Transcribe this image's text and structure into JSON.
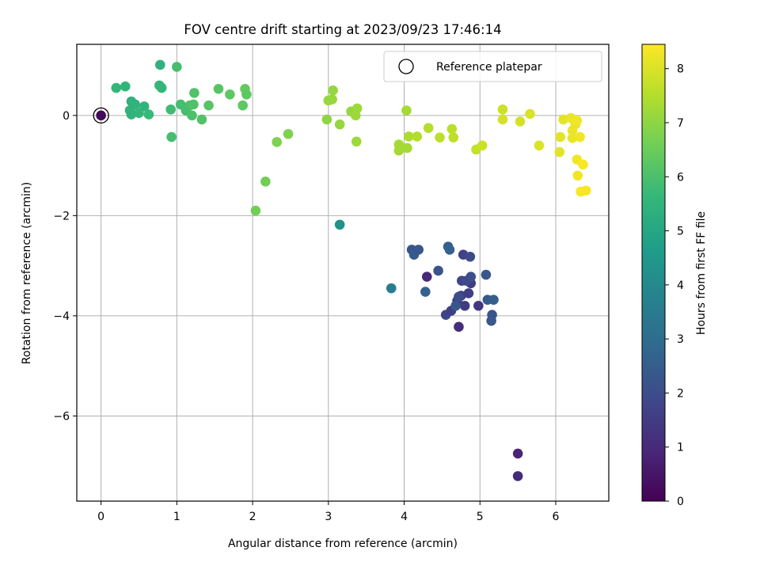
{
  "chart_data": {
    "type": "scatter",
    "title": "FOV centre drift starting at 2023/09/23 17:46:14",
    "xlabel": "Angular distance from reference (arcmin)",
    "ylabel": "Rotation from reference (arcmin)",
    "xlim": [
      -0.32,
      6.7
    ],
    "ylim": [
      -7.7,
      1.42
    ],
    "xticks": [
      0,
      1,
      2,
      3,
      4,
      5,
      6
    ],
    "yticks": [
      -6,
      -4,
      -2,
      0
    ],
    "ytick_labels": [
      "−6",
      "−4",
      "−2",
      "0"
    ],
    "grid": true,
    "legend": {
      "placement": "upper-right",
      "label": "Reference platepar"
    },
    "reference_point": {
      "x": 0,
      "y": 0
    },
    "colorbar": {
      "label": "Hours from first FF file",
      "range": [
        0,
        8.45
      ],
      "ticks": [
        0,
        1,
        2,
        3,
        4,
        5,
        6,
        7,
        8
      ],
      "colormap": "viridis"
    },
    "points": [
      [
        0,
        0,
        0.2
      ],
      [
        5.5,
        -6.75,
        0.9
      ],
      [
        5.5,
        -7.2,
        1.0
      ],
      [
        4.3,
        -3.22,
        1.0
      ],
      [
        4.72,
        -4.22,
        1.1
      ],
      [
        4.98,
        -3.8,
        1.4
      ],
      [
        4.55,
        -3.98,
        1.8
      ],
      [
        4.62,
        -3.9,
        1.6
      ],
      [
        4.7,
        -3.7,
        1.5
      ],
      [
        4.75,
        -3.6,
        1.6
      ],
      [
        4.8,
        -3.8,
        1.5
      ],
      [
        4.85,
        -3.55,
        1.6
      ],
      [
        4.88,
        -3.35,
        1.5
      ],
      [
        4.76,
        -3.3,
        1.8
      ],
      [
        4.82,
        -3.3,
        1.9
      ],
      [
        4.78,
        -2.78,
        1.7
      ],
      [
        4.87,
        -2.82,
        1.9
      ],
      [
        4.88,
        -3.22,
        2.1
      ],
      [
        4.45,
        -3.1,
        2.2
      ],
      [
        4.1,
        -2.68,
        2.2
      ],
      [
        4.13,
        -2.78,
        2.4
      ],
      [
        4.19,
        -2.68,
        2.3
      ],
      [
        4.28,
        -3.52,
        2.6
      ],
      [
        4.58,
        -2.62,
        2.5
      ],
      [
        4.6,
        -2.68,
        2.6
      ],
      [
        4.68,
        -3.8,
        2.3
      ],
      [
        4.72,
        -3.62,
        2.0
      ],
      [
        5.08,
        -3.18,
        2.3
      ],
      [
        5.1,
        -3.68,
        2.4
      ],
      [
        5.18,
        -3.68,
        2.5
      ],
      [
        5.16,
        -3.98,
        2.2
      ],
      [
        5.15,
        -4.1,
        2.3
      ],
      [
        3.83,
        -3.45,
        3.6
      ],
      [
        3.15,
        -2.18,
        4.3
      ],
      [
        0.78,
        1.01,
        5.4
      ],
      [
        0.77,
        0.6,
        5.6
      ],
      [
        0.8,
        0.55,
        5.6
      ],
      [
        0.32,
        0.58,
        5.5
      ],
      [
        0.2,
        0.55,
        5.6
      ],
      [
        0.38,
        0.1,
        5.5
      ],
      [
        0.4,
        0.02,
        5.5
      ],
      [
        0.4,
        0.28,
        5.4
      ],
      [
        0.45,
        0.22,
        5.5
      ],
      [
        0.5,
        0.05,
        5.6
      ],
      [
        0.57,
        0.18,
        5.5
      ],
      [
        0.63,
        0.02,
        5.7
      ],
      [
        0.92,
        0.12,
        5.8
      ],
      [
        0.93,
        -0.43,
        5.9
      ],
      [
        1.0,
        0.97,
        5.9
      ],
      [
        1.05,
        0.22,
        5.9
      ],
      [
        1.12,
        0.1,
        5.9
      ],
      [
        1.17,
        0.2,
        6.0
      ],
      [
        1.2,
        0.0,
        6.0
      ],
      [
        1.22,
        0.22,
        6.1
      ],
      [
        1.23,
        0.45,
        6.1
      ],
      [
        1.33,
        -0.08,
        6.1
      ],
      [
        1.42,
        0.2,
        6.2
      ],
      [
        1.55,
        0.53,
        6.2
      ],
      [
        1.7,
        0.42,
        6.3
      ],
      [
        1.87,
        0.2,
        6.3
      ],
      [
        1.9,
        0.53,
        6.4
      ],
      [
        1.92,
        0.42,
        6.3
      ],
      [
        2.04,
        -1.9,
        6.6
      ],
      [
        2.17,
        -1.32,
        6.6
      ],
      [
        2.32,
        -0.53,
        6.8
      ],
      [
        2.47,
        -0.37,
        6.8
      ],
      [
        2.98,
        -0.08,
        7.0
      ],
      [
        3.0,
        0.3,
        7.1
      ],
      [
        3.05,
        0.32,
        7.1
      ],
      [
        3.06,
        0.5,
        7.1
      ],
      [
        3.15,
        -0.18,
        7.1
      ],
      [
        3.3,
        0.08,
        7.1
      ],
      [
        3.36,
        0.0,
        7.2
      ],
      [
        3.38,
        0.14,
        7.2
      ],
      [
        3.37,
        -0.52,
        7.2
      ],
      [
        3.93,
        -0.58,
        7.3
      ],
      [
        3.93,
        -0.7,
        7.3
      ],
      [
        4.03,
        0.1,
        7.3
      ],
      [
        4.04,
        -0.65,
        7.3
      ],
      [
        4.06,
        -0.42,
        7.4
      ],
      [
        4.17,
        -0.42,
        7.5
      ],
      [
        4.32,
        -0.25,
        7.5
      ],
      [
        4.47,
        -0.44,
        7.6
      ],
      [
        4.63,
        -0.27,
        7.6
      ],
      [
        4.65,
        -0.44,
        7.6
      ],
      [
        4.95,
        -0.68,
        7.7
      ],
      [
        5.03,
        -0.6,
        7.8
      ],
      [
        5.3,
        0.12,
        7.8
      ],
      [
        5.3,
        -0.08,
        7.9
      ],
      [
        5.53,
        -0.12,
        7.9
      ],
      [
        5.66,
        0.03,
        8.0
      ],
      [
        5.78,
        -0.6,
        8.0
      ],
      [
        6.05,
        -0.73,
        8.1
      ],
      [
        6.06,
        -0.43,
        8.1
      ],
      [
        6.1,
        -0.08,
        8.1
      ],
      [
        6.2,
        -0.05,
        8.2
      ],
      [
        6.22,
        -0.3,
        8.2
      ],
      [
        6.22,
        -0.45,
        8.2
      ],
      [
        6.26,
        -0.18,
        8.2
      ],
      [
        6.28,
        -0.1,
        8.3
      ],
      [
        6.28,
        -0.88,
        8.3
      ],
      [
        6.29,
        -1.2,
        8.3
      ],
      [
        6.32,
        -0.43,
        8.3
      ],
      [
        6.36,
        -0.98,
        8.4
      ],
      [
        6.33,
        -1.52,
        8.4
      ],
      [
        6.4,
        -1.5,
        8.4
      ]
    ]
  }
}
